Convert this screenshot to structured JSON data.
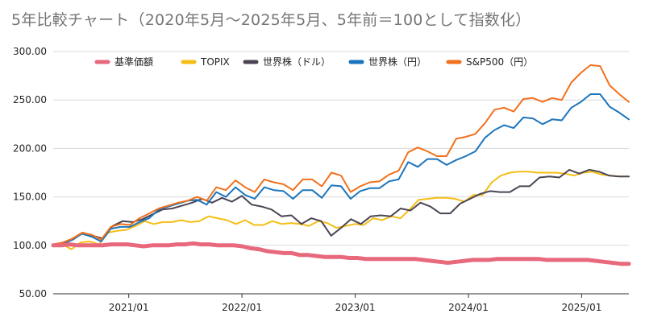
{
  "chart_data": {
    "type": "line",
    "title": "5年比較チャート（2020年5月～2025年5月、5年前＝100として指数化）",
    "xlabel": "",
    "ylabel": "",
    "ylim": [
      50,
      300
    ],
    "yticks": [
      "300.00",
      "250.00",
      "200.00",
      "150.00",
      "100.00",
      "50.00"
    ],
    "xticks": [
      {
        "label": "2021/01",
        "x": 2021.0
      },
      {
        "label": "2022/01",
        "x": 2022.0
      },
      {
        "label": "2023/01",
        "x": 2023.0
      },
      {
        "label": "2024/01",
        "x": 2024.0
      },
      {
        "label": "2025/01",
        "x": 2025.0
      }
    ],
    "grid": true,
    "legend_position": "top",
    "x_start": 2020.333,
    "x_step": 0.08333,
    "series": [
      {
        "name": "基準価額",
        "color": "#e8687c",
        "values": [
          100,
          100,
          101,
          100,
          100,
          100,
          100,
          101,
          101,
          101,
          100,
          99,
          100,
          100,
          100,
          101,
          101,
          102,
          101,
          101,
          100,
          100,
          100,
          99,
          97,
          96,
          94,
          93,
          92,
          92,
          90,
          90,
          89,
          88,
          88,
          88,
          87,
          87,
          86,
          86,
          86,
          86,
          86,
          86,
          86,
          85,
          84,
          83,
          82,
          83,
          84,
          85,
          85,
          85,
          86,
          86,
          86,
          86,
          86,
          86,
          85,
          85,
          85,
          85,
          85,
          85,
          84,
          83,
          82,
          81,
          81
        ]
      },
      {
        "name": "TOPIX",
        "color": "#f5be16",
        "values": [
          100,
          101,
          96,
          103,
          104,
          101,
          113,
          115,
          116,
          120,
          125,
          122,
          124,
          124,
          126,
          124,
          125,
          130,
          128,
          126,
          122,
          126,
          121,
          121,
          125,
          122,
          123,
          122,
          120,
          125,
          123,
          118,
          120,
          122,
          121,
          128,
          126,
          130,
          128,
          137,
          147,
          148,
          149,
          149,
          148,
          145,
          152,
          152,
          165,
          172,
          175,
          176,
          176,
          175,
          175,
          175,
          174,
          172,
          175,
          176,
          173,
          172,
          171,
          171
        ]
      },
      {
        "name": "世界株（ドル）",
        "color": "#4b4553",
        "values": [
          100,
          102,
          106,
          113,
          110,
          107,
          120,
          125,
          124,
          127,
          132,
          137,
          138,
          141,
          144,
          148,
          144,
          149,
          145,
          151,
          142,
          140,
          137,
          130,
          131,
          122,
          128,
          125,
          110,
          118,
          127,
          122,
          130,
          131,
          130,
          138,
          136,
          144,
          140,
          133,
          133,
          143,
          148,
          153,
          156,
          155,
          155,
          161,
          161,
          170,
          171,
          170,
          178,
          174,
          178,
          176,
          172,
          171,
          171
        ]
      },
      {
        "name": "世界株（円）",
        "color": "#1c75bc",
        "values": [
          100,
          101,
          106,
          112,
          109,
          104,
          117,
          119,
          119,
          124,
          128,
          137,
          140,
          143,
          146,
          147,
          142,
          155,
          150,
          160,
          152,
          148,
          160,
          157,
          156,
          148,
          157,
          157,
          149,
          162,
          161,
          148,
          156,
          159,
          159,
          166,
          168,
          186,
          181,
          189,
          189,
          183,
          188,
          192,
          197,
          211,
          219,
          224,
          221,
          232,
          231,
          225,
          230,
          229,
          242,
          248,
          256,
          256,
          243,
          237,
          230
        ]
      },
      {
        "name": "S&P500（円）",
        "color": "#f2711c",
        "values": [
          101,
          103,
          107,
          113,
          111,
          106,
          119,
          122,
          121,
          128,
          133,
          138,
          141,
          144,
          146,
          150,
          146,
          160,
          157,
          167,
          160,
          155,
          168,
          165,
          163,
          157,
          168,
          168,
          161,
          175,
          172,
          155,
          161,
          165,
          166,
          173,
          177,
          196,
          201,
          197,
          192,
          192,
          210,
          212,
          215,
          226,
          240,
          242,
          238,
          251,
          252,
          248,
          252,
          250,
          268,
          278,
          286,
          285,
          265,
          256,
          248
        ]
      }
    ]
  }
}
